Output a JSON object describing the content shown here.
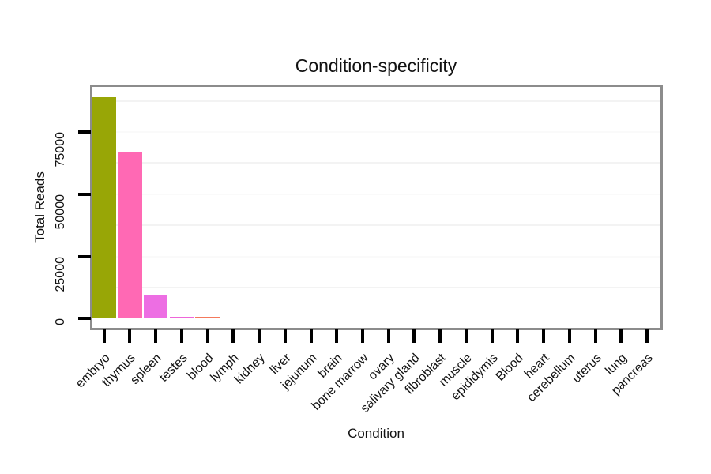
{
  "title": "Condition-specificity",
  "x_axis_title": "Condition",
  "y_axis_title": "Total Reads",
  "chart_data": {
    "type": "bar",
    "title": "Condition-specificity",
    "xlabel": "Condition",
    "ylabel": "Total Reads",
    "categories": [
      "embryo",
      "thymus",
      "spleen",
      "testes",
      "blood",
      "lymph",
      "kidney",
      "liver",
      "jejunum",
      "brain",
      "bone marrow",
      "ovary",
      "salivary gland",
      "fibroblast",
      "muscle",
      "epididymis",
      "Blood",
      "heart",
      "cerebellum",
      "uterus",
      "lung",
      "pancreas"
    ],
    "values": [
      89000,
      67000,
      9400,
      700,
      800,
      400,
      0,
      0,
      0,
      0,
      0,
      0,
      0,
      0,
      0,
      0,
      0,
      0,
      0,
      0,
      0,
      0
    ],
    "bar_colors": [
      "#98A606",
      "#FF69B4",
      "#ED6EE3",
      "#EE66D9",
      "#F4795C",
      "#29A8DC",
      null,
      null,
      null,
      null,
      null,
      null,
      null,
      null,
      null,
      null,
      null,
      null,
      null,
      null,
      null,
      null
    ],
    "y_ticks": [
      {
        "value": 0,
        "label": "0"
      },
      {
        "value": 25000,
        "label": "25000"
      },
      {
        "value": 50000,
        "label": "50000"
      },
      {
        "value": 75000,
        "label": "75000"
      }
    ],
    "minor_gridline_values": [
      12500,
      37500,
      62500,
      87500
    ],
    "major_gridline_values": [
      25000,
      50000,
      75000
    ],
    "ylim": [
      0,
      93500
    ],
    "legend": "none",
    "grid": "faint horizontal gridlines on white panel",
    "panel_border_color": "#8c8c8c",
    "tick_color": "#000000"
  }
}
